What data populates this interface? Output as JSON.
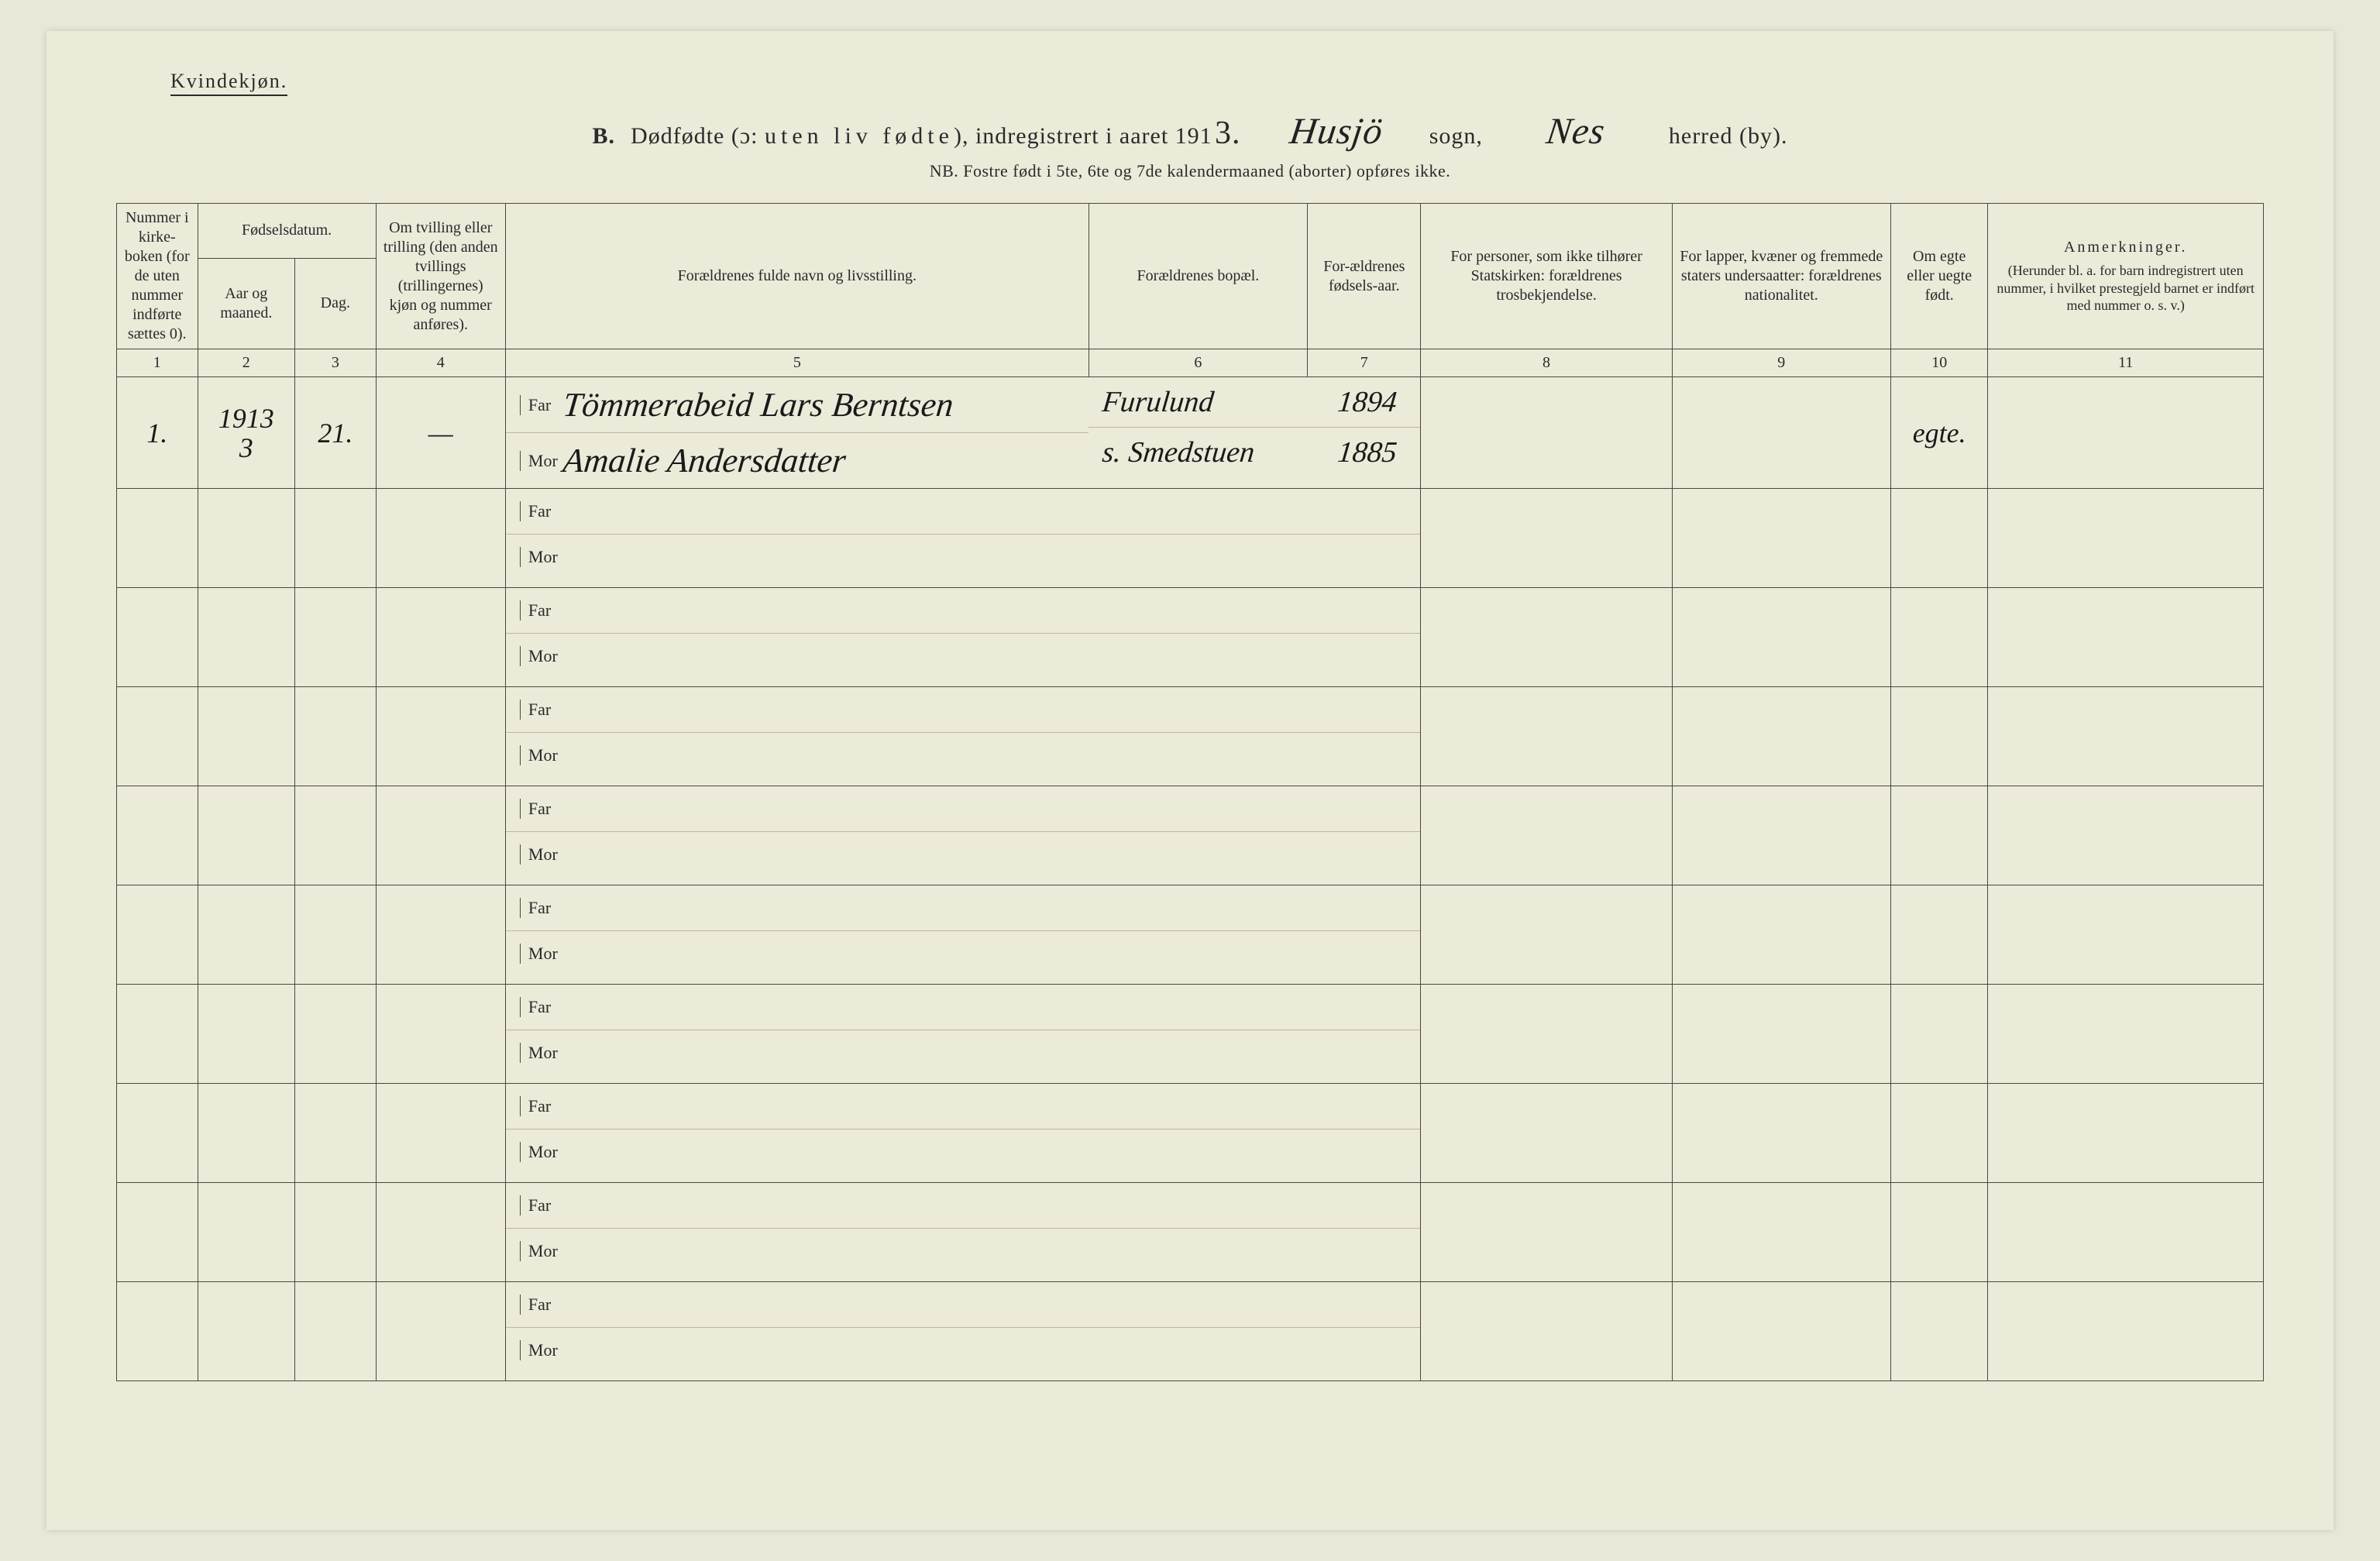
{
  "header": {
    "gender_label": "Kvindekjøn.",
    "title_prefix": "B.",
    "title_main_a": "Dødfødte (ɔ:",
    "title_main_spaced": "uten liv fødte",
    "title_main_b": "), indregistrert i aaret 191",
    "year_suffix_handwritten": "3.",
    "sogn_handwritten": "Husjö",
    "sogn_label": "sogn,",
    "herred_handwritten": "Nes",
    "herred_label": "herred (by).",
    "subtitle": "NB.  Fostre født i 5te, 6te og 7de kalendermaaned (aborter) opføres ikke."
  },
  "columns": {
    "c1": "Nummer i kirke-boken (for de uten nummer indførte sættes 0).",
    "c2_group": "Fødselsdatum.",
    "c2a": "Aar og maaned.",
    "c2b": "Dag.",
    "c4": "Om tvilling eller trilling (den anden tvillings (trillingernes) kjøn og nummer anføres).",
    "c5": "Forældrenes fulde navn og livsstilling.",
    "c6": "Forældrenes bopæl.",
    "c7": "For-ældrenes fødsels-aar.",
    "c8": "For personer, som ikke tilhører Statskirken: forældrenes trosbekjendelse.",
    "c9": "For lapper, kvæner og fremmede staters undersaatter: forældrenes nationalitet.",
    "c10": "Om egte eller uegte født.",
    "c11_title": "Anmerkninger.",
    "c11_sub": "(Herunder bl. a. for barn indregistrert uten nummer, i hvilket prestegjeld barnet er indført med nummer o. s. v.)",
    "far_label": "Far",
    "mor_label": "Mor",
    "colnums": [
      "1",
      "2",
      "3",
      "4",
      "5",
      "6",
      "7",
      "8",
      "9",
      "10",
      "11"
    ]
  },
  "rows": [
    {
      "num": "1.",
      "year_month_top": "1913",
      "year_month_bot": "3",
      "day": "21.",
      "twin": "—",
      "far_name": "Tömmerabeid Lars Berntsen",
      "mor_name": "Amalie Andersdatter",
      "far_place": "Furulund",
      "mor_place": "s. Smedstuen",
      "far_year": "1894",
      "mor_year": "1885",
      "stats": "",
      "nat": "",
      "egte": "egte.",
      "anm": ""
    },
    {
      "num": "",
      "year_month_top": "",
      "year_month_bot": "",
      "day": "",
      "twin": "",
      "far_name": "",
      "mor_name": "",
      "far_place": "",
      "mor_place": "",
      "far_year": "",
      "mor_year": "",
      "stats": "",
      "nat": "",
      "egte": "",
      "anm": ""
    },
    {
      "num": "",
      "year_month_top": "",
      "year_month_bot": "",
      "day": "",
      "twin": "",
      "far_name": "",
      "mor_name": "",
      "far_place": "",
      "mor_place": "",
      "far_year": "",
      "mor_year": "",
      "stats": "",
      "nat": "",
      "egte": "",
      "anm": ""
    },
    {
      "num": "",
      "year_month_top": "",
      "year_month_bot": "",
      "day": "",
      "twin": "",
      "far_name": "",
      "mor_name": "",
      "far_place": "",
      "mor_place": "",
      "far_year": "",
      "mor_year": "",
      "stats": "",
      "nat": "",
      "egte": "",
      "anm": ""
    },
    {
      "num": "",
      "year_month_top": "",
      "year_month_bot": "",
      "day": "",
      "twin": "",
      "far_name": "",
      "mor_name": "",
      "far_place": "",
      "mor_place": "",
      "far_year": "",
      "mor_year": "",
      "stats": "",
      "nat": "",
      "egte": "",
      "anm": ""
    },
    {
      "num": "",
      "year_month_top": "",
      "year_month_bot": "",
      "day": "",
      "twin": "",
      "far_name": "",
      "mor_name": "",
      "far_place": "",
      "mor_place": "",
      "far_year": "",
      "mor_year": "",
      "stats": "",
      "nat": "",
      "egte": "",
      "anm": ""
    },
    {
      "num": "",
      "year_month_top": "",
      "year_month_bot": "",
      "day": "",
      "twin": "",
      "far_name": "",
      "mor_name": "",
      "far_place": "",
      "mor_place": "",
      "far_year": "",
      "mor_year": "",
      "stats": "",
      "nat": "",
      "egte": "",
      "anm": ""
    },
    {
      "num": "",
      "year_month_top": "",
      "year_month_bot": "",
      "day": "",
      "twin": "",
      "far_name": "",
      "mor_name": "",
      "far_place": "",
      "mor_place": "",
      "far_year": "",
      "mor_year": "",
      "stats": "",
      "nat": "",
      "egte": "",
      "anm": ""
    },
    {
      "num": "",
      "year_month_top": "",
      "year_month_bot": "",
      "day": "",
      "twin": "",
      "far_name": "",
      "mor_name": "",
      "far_place": "",
      "mor_place": "",
      "far_year": "",
      "mor_year": "",
      "stats": "",
      "nat": "",
      "egte": "",
      "anm": ""
    },
    {
      "num": "",
      "year_month_top": "",
      "year_month_bot": "",
      "day": "",
      "twin": "",
      "far_name": "",
      "mor_name": "",
      "far_place": "",
      "mor_place": "",
      "far_year": "",
      "mor_year": "",
      "stats": "",
      "nat": "",
      "egte": "",
      "anm": ""
    }
  ],
  "style": {
    "page_bg": "#ecead9",
    "ink": "#2a2a2a",
    "rule": "#4a4a3a",
    "subrule": "#bdb99e",
    "header_font_size": 20,
    "hand_font_size": 44
  }
}
